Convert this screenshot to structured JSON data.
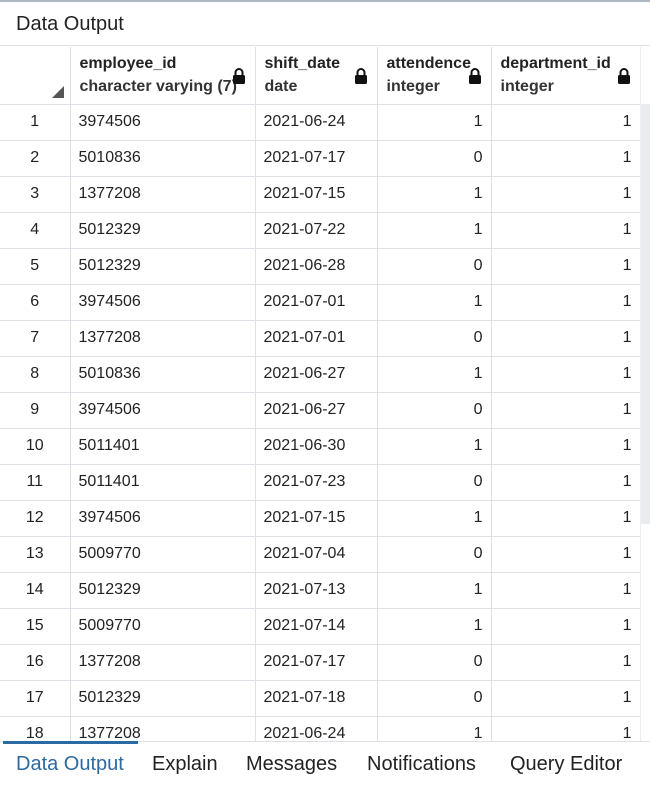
{
  "panel": {
    "title": "Data Output"
  },
  "grid": {
    "columns": [
      {
        "name": "employee_id",
        "type": "character varying (7)"
      },
      {
        "name": "shift_date",
        "type": "date"
      },
      {
        "name": "attendence",
        "type": "integer"
      },
      {
        "name": "department_id",
        "type": "integer"
      }
    ],
    "rows": [
      [
        "1",
        "3974506",
        "2021-06-24",
        "1",
        "1"
      ],
      [
        "2",
        "5010836",
        "2021-07-17",
        "0",
        "1"
      ],
      [
        "3",
        "1377208",
        "2021-07-15",
        "1",
        "1"
      ],
      [
        "4",
        "5012329",
        "2021-07-22",
        "1",
        "1"
      ],
      [
        "5",
        "5012329",
        "2021-06-28",
        "0",
        "1"
      ],
      [
        "6",
        "3974506",
        "2021-07-01",
        "1",
        "1"
      ],
      [
        "7",
        "1377208",
        "2021-07-01",
        "0",
        "1"
      ],
      [
        "8",
        "5010836",
        "2021-06-27",
        "1",
        "1"
      ],
      [
        "9",
        "3974506",
        "2021-06-27",
        "0",
        "1"
      ],
      [
        "10",
        "5011401",
        "2021-06-30",
        "1",
        "1"
      ],
      [
        "11",
        "5011401",
        "2021-07-23",
        "0",
        "1"
      ],
      [
        "12",
        "3974506",
        "2021-07-15",
        "1",
        "1"
      ],
      [
        "13",
        "5009770",
        "2021-07-04",
        "0",
        "1"
      ],
      [
        "14",
        "5012329",
        "2021-07-13",
        "1",
        "1"
      ],
      [
        "15",
        "5009770",
        "2021-07-14",
        "1",
        "1"
      ],
      [
        "16",
        "1377208",
        "2021-07-17",
        "0",
        "1"
      ],
      [
        "17",
        "5012329",
        "2021-07-18",
        "0",
        "1"
      ],
      [
        "18",
        "1377208",
        "2021-06-24",
        "1",
        "1"
      ]
    ]
  },
  "tabs": [
    {
      "label": "Data Output",
      "active": true
    },
    {
      "label": "Explain",
      "active": false
    },
    {
      "label": "Messages",
      "active": false
    },
    {
      "label": "Notifications",
      "active": false
    },
    {
      "label": "Query Editor",
      "active": false
    }
  ],
  "colors": {
    "accent": "#2c6aa3",
    "border": "#dde0e6",
    "text": "#222222"
  },
  "icons": {
    "column_lock": "lock-icon",
    "select_all": "corner-triangle-icon"
  }
}
